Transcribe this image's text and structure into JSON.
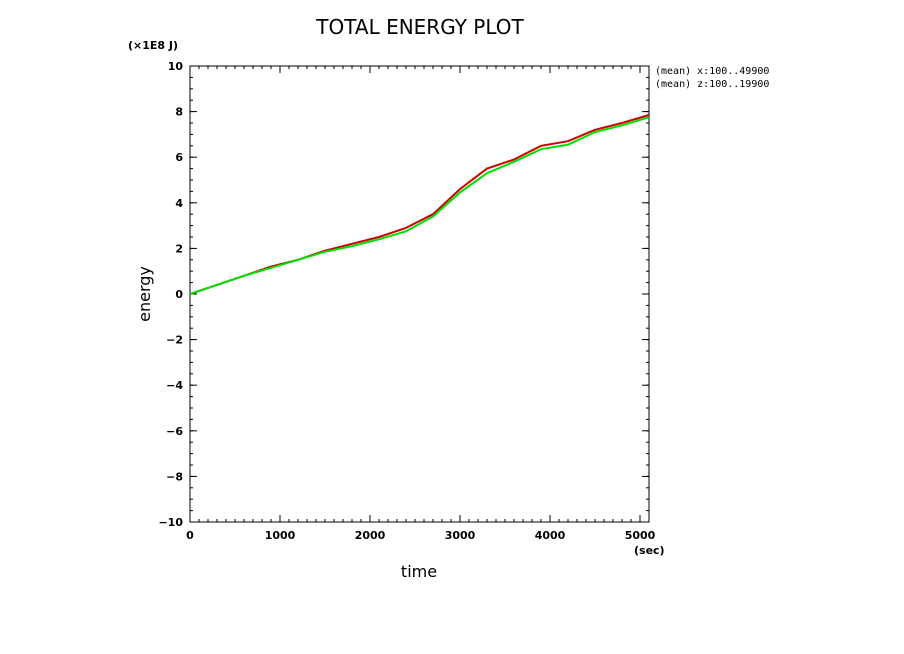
{
  "chart_data": {
    "type": "line",
    "title": "TOTAL ENERGY PLOT",
    "xlabel": "time",
    "ylabel": "energy",
    "x_unit": "(sec)",
    "y_unit": "(×1E8 J)",
    "xlim": [
      0,
      5100
    ],
    "ylim": [
      -10,
      10
    ],
    "x_ticks": [
      0,
      1000,
      2000,
      3000,
      4000,
      5000
    ],
    "y_ticks": [
      -10,
      -8,
      -6,
      -4,
      -2,
      0,
      2,
      4,
      6,
      8,
      10
    ],
    "x_tick_labels": [
      "0",
      "1000",
      "2000",
      "3000",
      "4000",
      "5000"
    ],
    "y_tick_labels": [
      "−10",
      "−8",
      "−6",
      "−4",
      "−2",
      "0",
      "2",
      "4",
      "6",
      "8",
      "10"
    ],
    "legend_position": "top-right, outside plot",
    "grid": false,
    "series": [
      {
        "name": "(mean) x:100..49900",
        "color": "#cc0000",
        "x": [
          0,
          300,
          600,
          900,
          1200,
          1500,
          1800,
          2100,
          2400,
          2700,
          3000,
          3300,
          3600,
          3900,
          4200,
          4500,
          4800,
          5100
        ],
        "y": [
          0.0,
          0.4,
          0.8,
          1.2,
          1.5,
          1.9,
          2.2,
          2.5,
          2.9,
          3.5,
          4.6,
          5.5,
          5.9,
          6.5,
          6.7,
          7.2,
          7.5,
          7.85
        ]
      },
      {
        "name": "(mean) z:100..19900",
        "color": "#00e000",
        "x": [
          0,
          300,
          600,
          900,
          1200,
          1500,
          1800,
          2100,
          2400,
          2700,
          3000,
          3300,
          3600,
          3900,
          4200,
          4500,
          4800,
          5100
        ],
        "y": [
          0.0,
          0.4,
          0.8,
          1.15,
          1.5,
          1.85,
          2.1,
          2.4,
          2.75,
          3.4,
          4.45,
          5.3,
          5.8,
          6.35,
          6.55,
          7.1,
          7.4,
          7.75
        ]
      }
    ]
  }
}
